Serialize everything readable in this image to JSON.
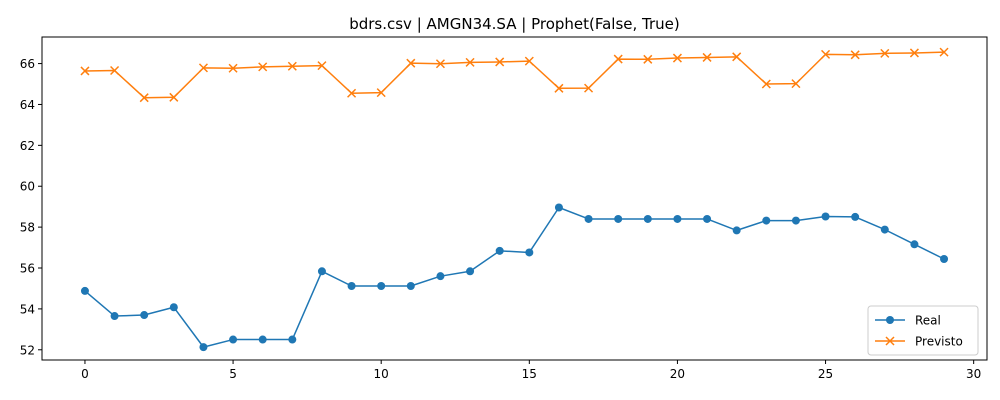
{
  "chart_data": {
    "type": "line",
    "title": "bdrs.csv | AMGN34.SA | Prophet(False, True)",
    "xlabel": "",
    "ylabel": "",
    "x": [
      0,
      1,
      2,
      3,
      4,
      5,
      6,
      7,
      8,
      9,
      10,
      11,
      12,
      13,
      14,
      15,
      16,
      17,
      18,
      19,
      20,
      21,
      22,
      23,
      24,
      25,
      26,
      27,
      28,
      29
    ],
    "xlim": [
      -1.45,
      30.45
    ],
    "ylim": [
      51.5,
      67.3
    ],
    "xticks": [
      0,
      5,
      10,
      15,
      20,
      25,
      30
    ],
    "yticks": [
      52,
      54,
      56,
      58,
      60,
      62,
      64,
      66
    ],
    "grid": false,
    "legend_position": "lower-right",
    "series": [
      {
        "name": "Real",
        "color": "#1f77b4",
        "marker": "circle",
        "values": [
          54.88,
          53.65,
          53.7,
          54.08,
          52.13,
          52.5,
          52.5,
          52.5,
          55.84,
          55.12,
          55.12,
          55.12,
          55.6,
          55.84,
          56.84,
          56.76,
          58.96,
          58.4,
          58.4,
          58.4,
          58.4,
          58.4,
          57.84,
          58.32,
          58.32,
          58.52,
          58.5,
          57.88,
          57.16,
          56.44
        ]
      },
      {
        "name": "Previsto",
        "color": "#ff7f0e",
        "marker": "x",
        "values": [
          65.64,
          65.66,
          64.33,
          64.35,
          65.79,
          65.77,
          65.84,
          65.87,
          65.9,
          64.55,
          64.58,
          66.02,
          65.99,
          66.06,
          66.08,
          66.12,
          64.79,
          64.8,
          66.22,
          66.21,
          66.27,
          66.3,
          66.33,
          65.0,
          65.02,
          66.45,
          66.43,
          66.5,
          66.52,
          66.56
        ]
      }
    ]
  }
}
